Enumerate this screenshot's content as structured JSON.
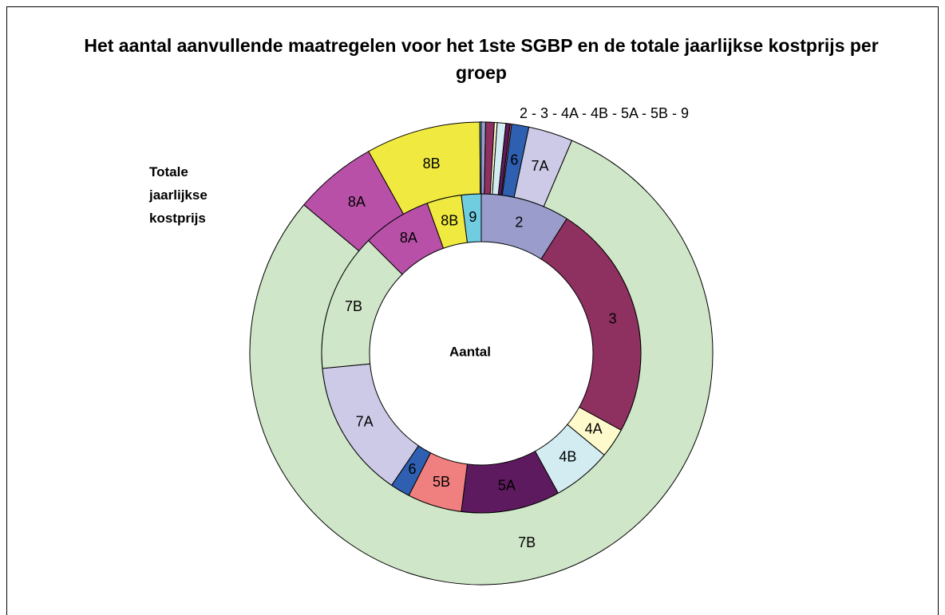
{
  "chart_data": {
    "type": "donut",
    "title": "Het aantal aanvullende maatregelen voor het 1ste SGBP en de totale jaarlijkse kostprijs per groep",
    "annotation": "2 - 3 - 4A - 4B - 5A - 5B - 9",
    "categories": [
      "2",
      "3",
      "4A",
      "4B",
      "5A",
      "5B",
      "6",
      "7A",
      "7B",
      "8A",
      "8B",
      "9"
    ],
    "colors": [
      "#9a9ccc",
      "#8e3060",
      "#fffacc",
      "#d2ecf2",
      "#5e1a5e",
      "#f08080",
      "#2f5fb0",
      "#cccae6",
      "#cfe6c8",
      "#b850a8",
      "#f0ea40",
      "#70cde0"
    ],
    "series": [
      {
        "name": "Aantal",
        "values": [
          9,
          24,
          3,
          6,
          10,
          5.5,
          2,
          14,
          14,
          7,
          3.5,
          2
        ]
      },
      {
        "name": "Totale jaarlijkse kostprijs",
        "values": [
          0.3,
          0.6,
          0.2,
          0.6,
          0.3,
          0.1,
          1.2,
          3.1,
          79.7,
          5.8,
          8,
          0.1
        ]
      }
    ]
  }
}
